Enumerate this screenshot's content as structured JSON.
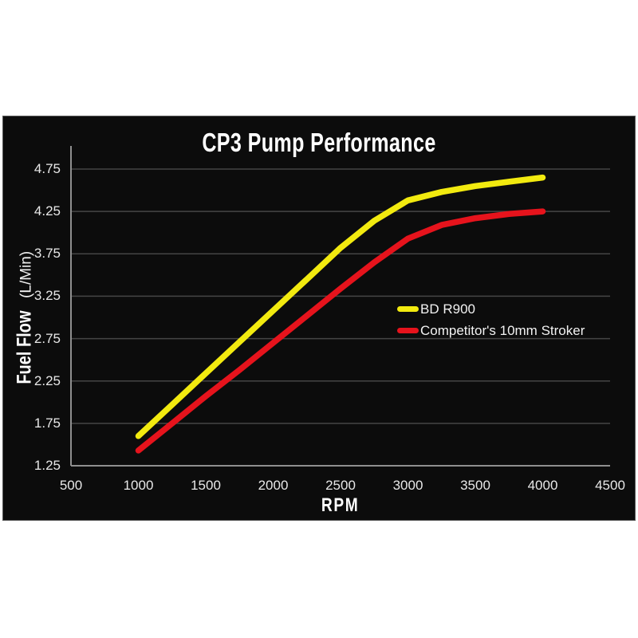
{
  "page": {
    "background": "#ffffff"
  },
  "panel": {
    "background": "#0c0c0c",
    "border_color": "#5c5c5c"
  },
  "colors": {
    "grid": "#454545",
    "axis": "#8f8f8f",
    "tick_text": "#e8e8e8",
    "title_text": "#ffffff",
    "legend_text": "#f2f2f2"
  },
  "chart_data": {
    "type": "line",
    "title": "CP3 Pump Performance",
    "xlabel": "RPM",
    "ylabel": "Fuel Flow (L/Min)",
    "ylabel_bold": "Fuel Flow",
    "ylabel_unit": "(L/Min)",
    "xlim": [
      500,
      4500
    ],
    "ylim": [
      1.25,
      4.75
    ],
    "grid": true,
    "legend_position": "center-right",
    "x_ticks": [
      "500",
      "1000",
      "1500",
      "2000",
      "2500",
      "3000",
      "3500",
      "4000",
      "4500"
    ],
    "y_ticks": [
      "4.75",
      "4.25",
      "3.75",
      "3.25",
      "2.75",
      "2.25",
      "1.75",
      "1.25"
    ],
    "x": [
      1000,
      1250,
      1500,
      1750,
      2000,
      2250,
      2500,
      2750,
      3000,
      3250,
      3500,
      3750,
      4000
    ],
    "series": [
      {
        "name": "BD R900",
        "color": "#f2ea0f",
        "values": [
          1.6,
          1.97,
          2.34,
          2.71,
          3.08,
          3.45,
          3.82,
          4.14,
          4.38,
          4.48,
          4.55,
          4.6,
          4.65
        ]
      },
      {
        "name": "Competitor's 10mm Stroker",
        "color": "#e6131c",
        "values": [
          1.43,
          1.75,
          2.07,
          2.38,
          2.7,
          3.02,
          3.34,
          3.65,
          3.93,
          4.09,
          4.17,
          4.22,
          4.25
        ]
      }
    ]
  }
}
